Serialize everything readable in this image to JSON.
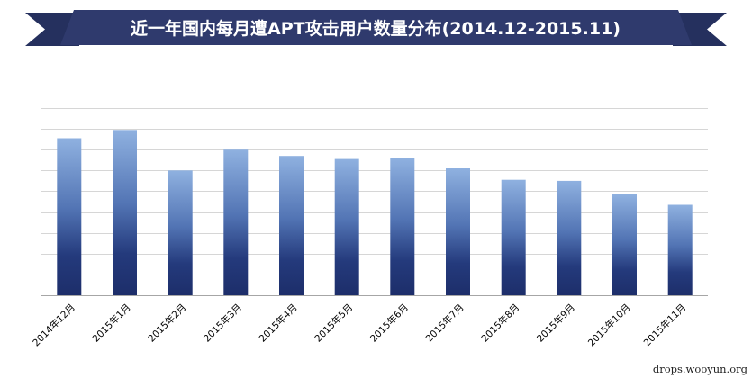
{
  "chart_data": {
    "type": "bar",
    "title": "近一年国内每月遭APT攻击用户数量分布(2014.12-2015.11)",
    "categories": [
      "2014年12月",
      "2015年1月",
      "2015年2月",
      "2015年3月",
      "2015年4月",
      "2015年5月",
      "2015年6月",
      "2015年7月",
      "2015年8月",
      "2015年9月",
      "2015年10月",
      "2015年11月"
    ],
    "values": [
      75.5,
      79.5,
      60,
      70,
      67,
      65.5,
      66,
      61,
      55.5,
      55,
      48.5,
      43.5
    ],
    "ylim": [
      0,
      90
    ],
    "gridlines": 9,
    "grid": true,
    "y_tick_labels_shown": false,
    "legend": "none",
    "colors": {
      "banner": "#2f3a6d",
      "banner_tail": "#25305e",
      "bar_top": "#8fb1e0",
      "bar_mid": "#4868a8",
      "bar_bottom": "#1d2e6a",
      "grid": "#d6d6d6",
      "axis": "#a6a6a6"
    }
  },
  "watermark": "drops.wooyun.org"
}
